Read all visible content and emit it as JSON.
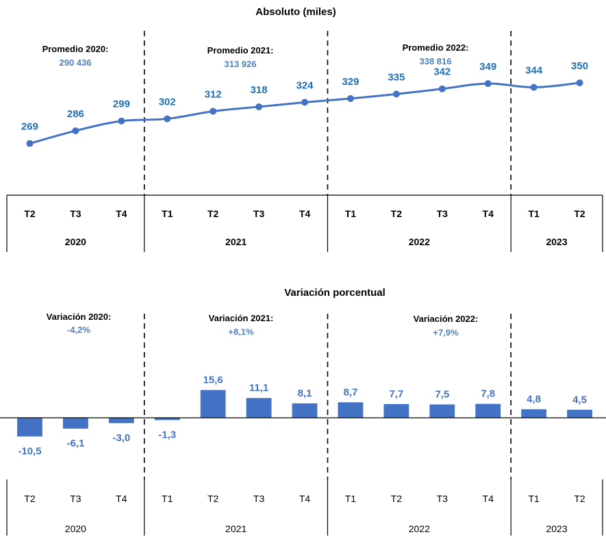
{
  "colors": {
    "line": "#4472c4",
    "bar": "#4472c4",
    "annotation_value": "#4f81bd",
    "point_label": "#1f6fb5",
    "axis": "#000000"
  },
  "chart_data": [
    {
      "type": "line",
      "title": "Absoluto (miles)",
      "categories": [
        "T2",
        "T3",
        "T4",
        "T1",
        "T2",
        "T3",
        "T4",
        "T1",
        "T2",
        "T3",
        "T4",
        "T1",
        "T2"
      ],
      "groups": [
        {
          "label": "2020",
          "quarters": 3
        },
        {
          "label": "2021",
          "quarters": 4
        },
        {
          "label": "2022",
          "quarters": 4
        },
        {
          "label": "2023",
          "quarters": 2
        }
      ],
      "values": [
        269,
        286,
        299,
        302,
        312,
        318,
        324,
        329,
        335,
        342,
        349,
        344,
        350
      ],
      "data_labels": [
        "269",
        "286",
        "299",
        "302",
        "312",
        "318",
        "324",
        "329",
        "335",
        "342",
        "349",
        "344",
        "350"
      ],
      "ylim": [
        200,
        360
      ],
      "annotations": [
        {
          "heading": "Promedio 2020:",
          "value": "290 436"
        },
        {
          "heading": "Promedio 2021:",
          "value": "313 926"
        },
        {
          "heading": "Promedio 2022:",
          "value": "338 816"
        }
      ]
    },
    {
      "type": "bar",
      "title": "Variación porcentual",
      "categories": [
        "T2",
        "T3",
        "T4",
        "T1",
        "T2",
        "T3",
        "T4",
        "T1",
        "T2",
        "T3",
        "T4",
        "T1",
        "T2"
      ],
      "groups": [
        {
          "label": "2020",
          "quarters": 3
        },
        {
          "label": "2021",
          "quarters": 4
        },
        {
          "label": "2022",
          "quarters": 4
        },
        {
          "label": "2023",
          "quarters": 2
        }
      ],
      "values": [
        -10.5,
        -6.1,
        -3.0,
        -1.3,
        15.6,
        11.1,
        8.1,
        8.7,
        7.7,
        7.5,
        7.8,
        4.8,
        4.5
      ],
      "data_labels": [
        "-10,5",
        "-6,1",
        "-3,0",
        "-1,3",
        "15,6",
        "11,1",
        "8,1",
        "8,7",
        "7,7",
        "7,5",
        "7,8",
        "4,8",
        "4,5"
      ],
      "annotations": [
        {
          "heading": "Variación 2020:",
          "value": "-4,2%"
        },
        {
          "heading": "Variación 2021:",
          "value": "+8,1%"
        },
        {
          "heading": "Variación 2022:",
          "value": "+7,9%"
        }
      ]
    }
  ]
}
